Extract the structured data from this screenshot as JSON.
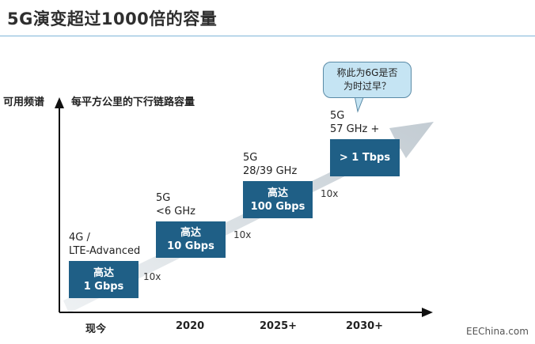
{
  "title": "5G演变超过1000倍的容量",
  "y_axis_label": "可用频谱",
  "chart_caption": "每平方公里的下行链路容量",
  "x_ticks": [
    "现今",
    "2020",
    "2025+",
    "2030+"
  ],
  "stages": [
    {
      "tech_line1": "4G /",
      "tech_line2": "LTE-Advanced",
      "box_line1": "高达",
      "box_line2": "1 Gbps"
    },
    {
      "tech_line1": "5G",
      "tech_line2": "<6 GHz",
      "box_line1": "高达",
      "box_line2": "10 Gbps"
    },
    {
      "tech_line1": "5G",
      "tech_line2": "28/39 GHz",
      "box_line1": "高达",
      "box_line2": "100 Gbps"
    },
    {
      "tech_line1": "5G",
      "tech_line2": "57 GHz +",
      "box_line1": "> 1 Tbps",
      "box_line2": ""
    }
  ],
  "factors": [
    "10x",
    "10x",
    "10x"
  ],
  "callout": {
    "line1": "称此为6G是否",
    "line2": "为时过早？"
  },
  "watermark": "EEChina.com",
  "colors": {
    "box": "#1f5f86",
    "arrow": "#cfd6dc",
    "bubble": "#c5e4f3"
  }
}
